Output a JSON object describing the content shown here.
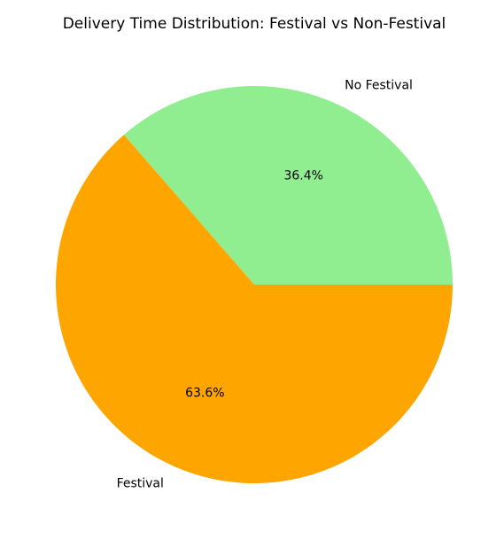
{
  "chart_data": {
    "type": "pie",
    "title": "Delivery Time Distribution: Festival vs Non-Festival",
    "start_angle_deg": 0,
    "direction": "counterclockwise",
    "slices": [
      {
        "label": "No Festival",
        "value": 36.4,
        "pct_label": "36.4%",
        "color": "#90EE90"
      },
      {
        "label": "Festival",
        "value": 63.6,
        "pct_label": "63.6%",
        "color": "#FFA500"
      }
    ]
  }
}
